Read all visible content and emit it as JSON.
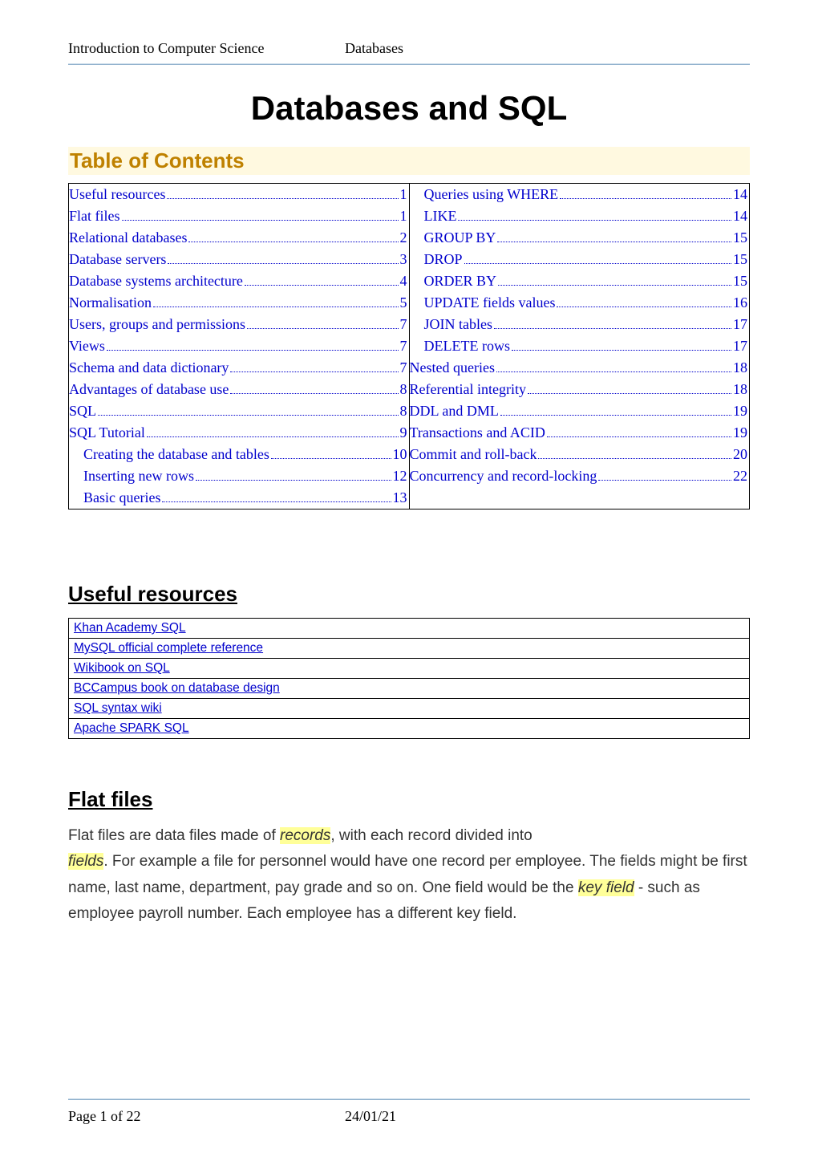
{
  "header": {
    "left": "Introduction to Computer Science",
    "center": "Databases"
  },
  "title": "Databases and SQL",
  "toc": {
    "heading": "Table of Contents",
    "left": [
      {
        "label": "Useful resources",
        "page": "1",
        "indent": false
      },
      {
        "label": "Flat files",
        "page": "1",
        "indent": false
      },
      {
        "label": "Relational databases",
        "page": "2",
        "indent": false
      },
      {
        "label": "Database servers",
        "page": "3",
        "indent": false
      },
      {
        "label": "Database systems architecture",
        "page": "4",
        "indent": false
      },
      {
        "label": "Normalisation",
        "page": "5",
        "indent": false
      },
      {
        "label": "Users, groups and permissions",
        "page": "7",
        "indent": false
      },
      {
        "label": "Views",
        "page": "7",
        "indent": false
      },
      {
        "label": "Schema and data dictionary",
        "page": "7",
        "indent": false
      },
      {
        "label": "Advantages of database use",
        "page": "8",
        "indent": false
      },
      {
        "label": "SQL",
        "page": "8",
        "indent": false
      },
      {
        "label": "SQL Tutorial",
        "page": "9",
        "indent": false
      },
      {
        "label": "Creating the database and tables",
        "page": "10",
        "indent": true
      },
      {
        "label": "Inserting new rows",
        "page": "12",
        "indent": true
      },
      {
        "label": "Basic queries",
        "page": "13",
        "indent": true
      }
    ],
    "right": [
      {
        "label": "Queries using WHERE",
        "page": "14",
        "indent": true
      },
      {
        "label": "LIKE",
        "page": "14",
        "indent": true
      },
      {
        "label": "GROUP BY",
        "page": "15",
        "indent": true
      },
      {
        "label": "DROP",
        "page": "15",
        "indent": true
      },
      {
        "label": "ORDER BY",
        "page": "15",
        "indent": true
      },
      {
        "label": "UPDATE fields values",
        "page": "16",
        "indent": true
      },
      {
        "label": "JOIN tables",
        "page": "17",
        "indent": true
      },
      {
        "label": "DELETE rows",
        "page": "17",
        "indent": true
      },
      {
        "label": "Nested queries",
        "page": "18",
        "indent": false
      },
      {
        "label": "Referential integrity",
        "page": "18",
        "indent": false
      },
      {
        "label": "DDL and DML",
        "page": "19",
        "indent": false
      },
      {
        "label": "Transactions and ACID",
        "page": "19",
        "indent": false
      },
      {
        "label": "Commit and roll-back",
        "page": "20",
        "indent": false
      },
      {
        "label": "Concurrency and record-locking",
        "page": "22",
        "indent": false
      }
    ]
  },
  "resources": {
    "heading": "Useful resources",
    "items": [
      "Khan Academy SQL",
      "MySQL official complete reference",
      "Wikibook on SQL",
      "BCCampus book on database design",
      "SQL syntax wiki",
      "Apache SPARK SQL"
    ]
  },
  "flatfiles": {
    "heading": "Flat files",
    "p1a": "Flat files are data files made of ",
    "p1b": "records",
    "p1c": ", with each record divided into ",
    "p2a": "fields",
    "p2b": ". For example a file for personnel would have one record per employee. The fields might be first name, last name, department, pay grade and so on. One field would be the ",
    "p2c": "key field",
    "p2d": " - such as employee payroll number. Each employee has a different key field."
  },
  "footer": {
    "left": "Page 1 of 22",
    "center": "24/01/21"
  },
  "colors": {
    "link": "#0000cc",
    "toc_heading_text": "#bf8100",
    "toc_heading_bg": "#fff9e0",
    "highlight_bg": "#ffff99",
    "body_text": "#333333",
    "divider_light": "#c5d8e8",
    "divider_dark": "#8fb0cc"
  },
  "typography": {
    "title_fontsize": 42,
    "heading_fontsize": 26,
    "toc_fontsize": 18,
    "body_fontsize": 19,
    "resources_fontsize": 15.5,
    "header_footer_fontsize": 18
  }
}
